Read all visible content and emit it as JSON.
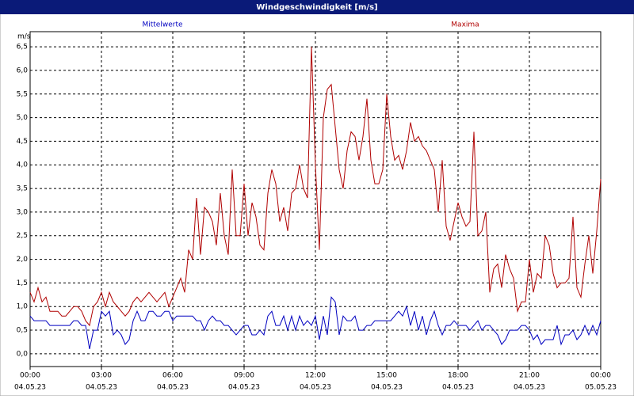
{
  "chart_data": {
    "type": "line",
    "title": "Windgeschwindigkeit [m/s]",
    "y_unit": "m/s",
    "grid": true,
    "xlim": [
      0,
      1440
    ],
    "ylim": [
      -0.27,
      6.82
    ],
    "xticks": [
      {
        "value": 0,
        "label": "00:00"
      },
      {
        "value": 180,
        "label": "03:00"
      },
      {
        "value": 360,
        "label": "06:00"
      },
      {
        "value": 540,
        "label": "09:00"
      },
      {
        "value": 720,
        "label": "12:00"
      },
      {
        "value": 900,
        "label": "15:00"
      },
      {
        "value": 1080,
        "label": "18:00"
      },
      {
        "value": 1260,
        "label": "21:00"
      },
      {
        "value": 1440,
        "label": "00:00"
      }
    ],
    "xtick_dates": [
      "04.05.23",
      "04.05.23",
      "04.05.23",
      "04.05.23",
      "04.05.23",
      "04.05.23",
      "04.05.23",
      "04.05.23",
      "05.05.23"
    ],
    "yticks": [
      {
        "value": 0,
        "label": "0,0"
      },
      {
        "value": 0.5,
        "label": "0,5"
      },
      {
        "value": 1,
        "label": "1,0"
      },
      {
        "value": 1.5,
        "label": "1,5"
      },
      {
        "value": 2,
        "label": "2,0"
      },
      {
        "value": 2.5,
        "label": "2,5"
      },
      {
        "value": 3,
        "label": "3,0"
      },
      {
        "value": 3.5,
        "label": "3,5"
      },
      {
        "value": 4,
        "label": "4,0"
      },
      {
        "value": 4.5,
        "label": "4,5"
      },
      {
        "value": 5,
        "label": "5,0"
      },
      {
        "value": 5.5,
        "label": "5,5"
      },
      {
        "value": 6,
        "label": "6,0"
      },
      {
        "value": 6.5,
        "label": "6,5"
      }
    ],
    "x": [
      0,
      10,
      20,
      30,
      40,
      50,
      60,
      70,
      80,
      90,
      100,
      110,
      120,
      130,
      140,
      150,
      160,
      170,
      180,
      190,
      200,
      210,
      220,
      230,
      240,
      250,
      260,
      270,
      280,
      290,
      300,
      310,
      320,
      330,
      340,
      350,
      360,
      370,
      380,
      390,
      400,
      410,
      420,
      430,
      440,
      450,
      460,
      470,
      480,
      490,
      500,
      510,
      520,
      530,
      540,
      550,
      560,
      570,
      580,
      590,
      600,
      610,
      620,
      630,
      640,
      650,
      660,
      670,
      680,
      690,
      700,
      710,
      720,
      730,
      740,
      750,
      760,
      770,
      780,
      790,
      800,
      810,
      820,
      830,
      840,
      850,
      860,
      870,
      880,
      890,
      900,
      910,
      920,
      930,
      940,
      950,
      960,
      970,
      980,
      990,
      1000,
      1010,
      1020,
      1030,
      1040,
      1050,
      1060,
      1070,
      1080,
      1090,
      1100,
      1110,
      1120,
      1130,
      1140,
      1150,
      1160,
      1170,
      1180,
      1190,
      1200,
      1210,
      1220,
      1230,
      1240,
      1250,
      1260,
      1270,
      1280,
      1290,
      1300,
      1310,
      1320,
      1330,
      1340,
      1350,
      1360,
      1370,
      1380,
      1390,
      1400,
      1410,
      1420,
      1430,
      1440
    ],
    "series": [
      {
        "name": "Mittelwerte",
        "color": "#0000c0",
        "values": [
          0.8,
          0.7,
          0.7,
          0.7,
          0.7,
          0.6,
          0.6,
          0.6,
          0.6,
          0.6,
          0.6,
          0.7,
          0.7,
          0.6,
          0.6,
          0.1,
          0.5,
          0.5,
          0.9,
          0.8,
          0.9,
          0.4,
          0.5,
          0.4,
          0.2,
          0.3,
          0.7,
          0.9,
          0.7,
          0.7,
          0.9,
          0.9,
          0.8,
          0.8,
          0.9,
          0.9,
          0.7,
          0.8,
          0.8,
          0.8,
          0.8,
          0.8,
          0.7,
          0.7,
          0.5,
          0.7,
          0.8,
          0.7,
          0.7,
          0.6,
          0.6,
          0.5,
          0.4,
          0.5,
          0.6,
          0.6,
          0.4,
          0.4,
          0.5,
          0.4,
          0.8,
          0.9,
          0.6,
          0.6,
          0.8,
          0.5,
          0.8,
          0.5,
          0.8,
          0.6,
          0.7,
          0.6,
          0.8,
          0.3,
          0.8,
          0.4,
          1.2,
          1.1,
          0.4,
          0.8,
          0.7,
          0.7,
          0.8,
          0.5,
          0.5,
          0.6,
          0.6,
          0.7,
          0.7,
          0.7,
          0.7,
          0.7,
          0.8,
          0.9,
          0.8,
          1.0,
          0.6,
          0.9,
          0.5,
          0.8,
          0.4,
          0.7,
          0.9,
          0.6,
          0.4,
          0.6,
          0.6,
          0.7,
          0.6,
          0.6,
          0.6,
          0.5,
          0.6,
          0.7,
          0.5,
          0.6,
          0.6,
          0.5,
          0.4,
          0.2,
          0.3,
          0.5,
          0.5,
          0.5,
          0.6,
          0.6,
          0.5,
          0.3,
          0.4,
          0.2,
          0.3,
          0.3,
          0.3,
          0.6,
          0.2,
          0.4,
          0.4,
          0.5,
          0.3,
          0.4,
          0.6,
          0.4,
          0.6,
          0.4,
          0.7
        ]
      },
      {
        "name": "Maxima",
        "color": "#b00000",
        "values": [
          1.3,
          1.1,
          1.4,
          1.1,
          1.2,
          0.9,
          0.9,
          0.9,
          0.8,
          0.8,
          0.9,
          1.0,
          1.0,
          0.9,
          0.7,
          0.6,
          1.0,
          1.1,
          1.3,
          1.0,
          1.3,
          1.1,
          1.0,
          0.9,
          0.8,
          0.9,
          1.1,
          1.2,
          1.1,
          1.2,
          1.3,
          1.2,
          1.1,
          1.2,
          1.3,
          1.0,
          1.2,
          1.4,
          1.6,
          1.3,
          2.2,
          2.0,
          3.3,
          2.1,
          3.1,
          3.0,
          2.8,
          2.3,
          3.4,
          2.5,
          2.1,
          3.9,
          2.5,
          2.5,
          3.6,
          2.5,
          3.2,
          2.9,
          2.3,
          2.2,
          3.4,
          3.9,
          3.6,
          2.8,
          3.1,
          2.6,
          3.4,
          3.5,
          4.0,
          3.5,
          3.3,
          6.5,
          4.0,
          2.2,
          5.0,
          5.6,
          5.7,
          4.8,
          3.9,
          3.5,
          4.3,
          4.7,
          4.6,
          4.1,
          4.6,
          5.4,
          4.1,
          3.6,
          3.6,
          3.9,
          5.5,
          4.6,
          4.1,
          4.2,
          3.9,
          4.3,
          4.9,
          4.5,
          4.6,
          4.4,
          4.3,
          4.1,
          3.9,
          3.0,
          4.1,
          2.7,
          2.4,
          2.8,
          3.2,
          2.9,
          2.7,
          2.8,
          4.7,
          2.5,
          2.6,
          3.0,
          1.3,
          1.8,
          1.9,
          1.4,
          2.1,
          1.8,
          1.6,
          0.9,
          1.1,
          1.1,
          2.0,
          1.3,
          1.7,
          1.6,
          2.5,
          2.3,
          1.7,
          1.4,
          1.5,
          1.5,
          1.6,
          2.9,
          1.4,
          1.2,
          1.9,
          2.5,
          1.7,
          2.6,
          3.7
        ]
      }
    ]
  }
}
